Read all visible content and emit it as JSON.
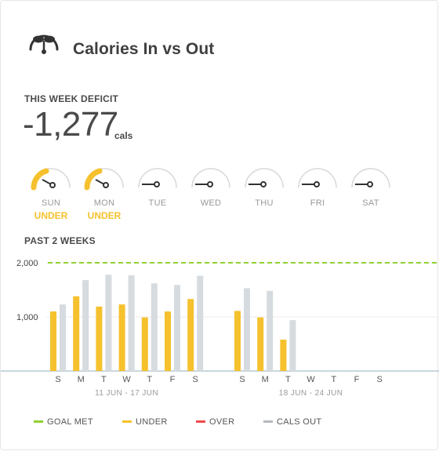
{
  "header": {
    "title": "Calories In vs Out",
    "icon": "scale-gauge-icon"
  },
  "deficit": {
    "label": "THIS WEEK DEFICIT",
    "value": "-1,277",
    "unit": "cals"
  },
  "week": [
    {
      "day": "SUN",
      "status": "UNDER",
      "filled": true
    },
    {
      "day": "MON",
      "status": "UNDER",
      "filled": true
    },
    {
      "day": "TUE",
      "status": "",
      "filled": false
    },
    {
      "day": "WED",
      "status": "",
      "filled": false
    },
    {
      "day": "THU",
      "status": "",
      "filled": false
    },
    {
      "day": "FRI",
      "status": "",
      "filled": false
    },
    {
      "day": "SAT",
      "status": "",
      "filled": false
    }
  ],
  "history": {
    "label": "PAST 2 WEEKS"
  },
  "chart_data": {
    "type": "bar",
    "yticks": [
      "2,000",
      "1,000"
    ],
    "ylim": [
      0,
      2200
    ],
    "goal": 2000,
    "weeks": [
      {
        "range": "11 JUN - 17 JUN",
        "days": [
          "S",
          "M",
          "T",
          "W",
          "T",
          "F",
          "S"
        ],
        "cals_in": [
          1100,
          1380,
          1190,
          1230,
          990,
          1100,
          1330
        ],
        "cals_out": [
          1230,
          1680,
          1780,
          1770,
          1620,
          1590,
          1760
        ]
      },
      {
        "range": "18 JUN - 24 JUN",
        "days": [
          "S",
          "M",
          "T",
          "W",
          "T",
          "F",
          "S"
        ],
        "cals_in": [
          1110,
          990,
          580,
          null,
          null,
          null,
          null
        ],
        "cals_out": [
          1530,
          1480,
          940,
          null,
          null,
          null,
          null
        ]
      }
    ]
  },
  "legend": [
    {
      "label": "GOAL MET",
      "color": "#8fd130"
    },
    {
      "label": "UNDER",
      "color": "#f5c12d"
    },
    {
      "label": "OVER",
      "color": "#ef4b4b"
    },
    {
      "label": "CALS OUT",
      "color": "#b5b9bc"
    }
  ],
  "colors": {
    "under": "#f5c12d",
    "out": "#d6dbdf",
    "goal_line": "#8fd130",
    "axis": "#b8c9d4",
    "grid": "#eeeeee"
  }
}
